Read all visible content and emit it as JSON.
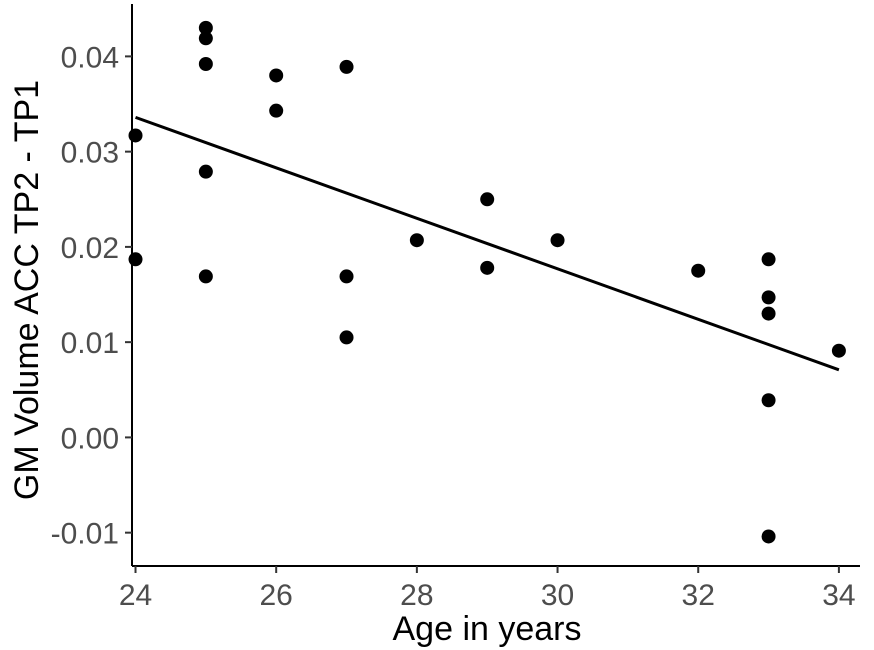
{
  "chart_data": {
    "type": "scatter",
    "title": "",
    "xlabel": "Age in years",
    "ylabel": "GM Volume ACC TP2 - TP1",
    "xlim": [
      23.95,
      34.3
    ],
    "ylim": [
      -0.0135,
      0.0455
    ],
    "x_ticks": [
      24,
      26,
      28,
      30,
      32,
      34
    ],
    "y_ticks": [
      -0.01,
      0.0,
      0.01,
      0.02,
      0.03,
      0.04
    ],
    "x_tick_labels": [
      "24",
      "26",
      "28",
      "30",
      "32",
      "34"
    ],
    "y_tick_labels": [
      "-0.01",
      "0.00",
      "0.01",
      "0.02",
      "0.03",
      "0.04"
    ],
    "grid": false,
    "legend": "none",
    "points": [
      {
        "x": 24,
        "y": 0.0317
      },
      {
        "x": 24,
        "y": 0.0187
      },
      {
        "x": 25,
        "y": 0.043
      },
      {
        "x": 25,
        "y": 0.0419
      },
      {
        "x": 25,
        "y": 0.0392
      },
      {
        "x": 25,
        "y": 0.0279
      },
      {
        "x": 25,
        "y": 0.0169
      },
      {
        "x": 26,
        "y": 0.038
      },
      {
        "x": 26,
        "y": 0.0343
      },
      {
        "x": 27,
        "y": 0.0389
      },
      {
        "x": 27,
        "y": 0.0169
      },
      {
        "x": 27,
        "y": 0.0105
      },
      {
        "x": 28,
        "y": 0.0207
      },
      {
        "x": 29,
        "y": 0.025
      },
      {
        "x": 29,
        "y": 0.0178
      },
      {
        "x": 30,
        "y": 0.0207
      },
      {
        "x": 32,
        "y": 0.0175
      },
      {
        "x": 33,
        "y": 0.0187
      },
      {
        "x": 33,
        "y": 0.0147
      },
      {
        "x": 33,
        "y": 0.013
      },
      {
        "x": 33,
        "y": 0.0039
      },
      {
        "x": 33,
        "y": -0.0104
      },
      {
        "x": 34,
        "y": 0.0091
      }
    ],
    "regression_line": {
      "x": [
        24,
        34
      ],
      "y": [
        0.0336,
        0.0071
      ]
    },
    "colors": {
      "points": "#000000",
      "line": "#000000",
      "axis": "#000000",
      "tick_label": "#4d4d4d"
    }
  }
}
